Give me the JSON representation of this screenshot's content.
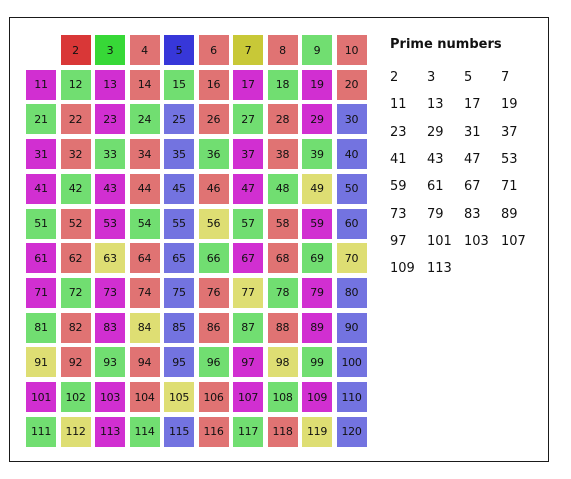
{
  "title": "Prime numbers",
  "colors": {
    "red": "#e07373",
    "green": "#71de71",
    "magenta": "#d12fd1",
    "blue": "#7373e0",
    "yellow": "#dede73",
    "first_red": "#d93737",
    "first_green": "#37d837",
    "first_blue": "#3737d9",
    "first_yellow": "#c8c837"
  },
  "cells": [
    {
      "n": "2",
      "c": "first_red"
    },
    {
      "n": "3",
      "c": "first_green"
    },
    {
      "n": "4",
      "c": "red"
    },
    {
      "n": "5",
      "c": "first_blue"
    },
    {
      "n": "6",
      "c": "red"
    },
    {
      "n": "7",
      "c": "first_yellow"
    },
    {
      "n": "8",
      "c": "red"
    },
    {
      "n": "9",
      "c": "green"
    },
    {
      "n": "10",
      "c": "red"
    },
    {
      "n": "11",
      "c": "magenta"
    },
    {
      "n": "12",
      "c": "green"
    },
    {
      "n": "13",
      "c": "magenta"
    },
    {
      "n": "14",
      "c": "red"
    },
    {
      "n": "15",
      "c": "green"
    },
    {
      "n": "16",
      "c": "red"
    },
    {
      "n": "17",
      "c": "magenta"
    },
    {
      "n": "18",
      "c": "green"
    },
    {
      "n": "19",
      "c": "magenta"
    },
    {
      "n": "20",
      "c": "red"
    },
    {
      "n": "21",
      "c": "green"
    },
    {
      "n": "22",
      "c": "red"
    },
    {
      "n": "23",
      "c": "magenta"
    },
    {
      "n": "24",
      "c": "green"
    },
    {
      "n": "25",
      "c": "blue"
    },
    {
      "n": "26",
      "c": "red"
    },
    {
      "n": "27",
      "c": "green"
    },
    {
      "n": "28",
      "c": "red"
    },
    {
      "n": "29",
      "c": "magenta"
    },
    {
      "n": "30",
      "c": "blue"
    },
    {
      "n": "31",
      "c": "magenta"
    },
    {
      "n": "32",
      "c": "red"
    },
    {
      "n": "33",
      "c": "green"
    },
    {
      "n": "34",
      "c": "red"
    },
    {
      "n": "35",
      "c": "blue"
    },
    {
      "n": "36",
      "c": "green"
    },
    {
      "n": "37",
      "c": "magenta"
    },
    {
      "n": "38",
      "c": "red"
    },
    {
      "n": "39",
      "c": "green"
    },
    {
      "n": "40",
      "c": "blue"
    },
    {
      "n": "41",
      "c": "magenta"
    },
    {
      "n": "42",
      "c": "green"
    },
    {
      "n": "43",
      "c": "magenta"
    },
    {
      "n": "44",
      "c": "red"
    },
    {
      "n": "45",
      "c": "blue"
    },
    {
      "n": "46",
      "c": "red"
    },
    {
      "n": "47",
      "c": "magenta"
    },
    {
      "n": "48",
      "c": "green"
    },
    {
      "n": "49",
      "c": "yellow"
    },
    {
      "n": "50",
      "c": "blue"
    },
    {
      "n": "51",
      "c": "green"
    },
    {
      "n": "52",
      "c": "red"
    },
    {
      "n": "53",
      "c": "magenta"
    },
    {
      "n": "54",
      "c": "green"
    },
    {
      "n": "55",
      "c": "blue"
    },
    {
      "n": "56",
      "c": "yellow"
    },
    {
      "n": "57",
      "c": "green"
    },
    {
      "n": "58",
      "c": "red"
    },
    {
      "n": "59",
      "c": "magenta"
    },
    {
      "n": "60",
      "c": "blue"
    },
    {
      "n": "61",
      "c": "magenta"
    },
    {
      "n": "62",
      "c": "red"
    },
    {
      "n": "63",
      "c": "yellow"
    },
    {
      "n": "64",
      "c": "red"
    },
    {
      "n": "65",
      "c": "blue"
    },
    {
      "n": "66",
      "c": "green"
    },
    {
      "n": "67",
      "c": "magenta"
    },
    {
      "n": "68",
      "c": "red"
    },
    {
      "n": "69",
      "c": "green"
    },
    {
      "n": "70",
      "c": "yellow"
    },
    {
      "n": "71",
      "c": "magenta"
    },
    {
      "n": "72",
      "c": "green"
    },
    {
      "n": "73",
      "c": "magenta"
    },
    {
      "n": "74",
      "c": "red"
    },
    {
      "n": "75",
      "c": "blue"
    },
    {
      "n": "76",
      "c": "red"
    },
    {
      "n": "77",
      "c": "yellow"
    },
    {
      "n": "78",
      "c": "green"
    },
    {
      "n": "79",
      "c": "magenta"
    },
    {
      "n": "80",
      "c": "blue"
    },
    {
      "n": "81",
      "c": "green"
    },
    {
      "n": "82",
      "c": "red"
    },
    {
      "n": "83",
      "c": "magenta"
    },
    {
      "n": "84",
      "c": "yellow"
    },
    {
      "n": "85",
      "c": "blue"
    },
    {
      "n": "86",
      "c": "red"
    },
    {
      "n": "87",
      "c": "green"
    },
    {
      "n": "88",
      "c": "red"
    },
    {
      "n": "89",
      "c": "magenta"
    },
    {
      "n": "90",
      "c": "blue"
    },
    {
      "n": "91",
      "c": "yellow"
    },
    {
      "n": "92",
      "c": "red"
    },
    {
      "n": "93",
      "c": "green"
    },
    {
      "n": "94",
      "c": "red"
    },
    {
      "n": "95",
      "c": "blue"
    },
    {
      "n": "96",
      "c": "green"
    },
    {
      "n": "97",
      "c": "magenta"
    },
    {
      "n": "98",
      "c": "yellow"
    },
    {
      "n": "99",
      "c": "green"
    },
    {
      "n": "100",
      "c": "blue"
    },
    {
      "n": "101",
      "c": "magenta"
    },
    {
      "n": "102",
      "c": "green"
    },
    {
      "n": "103",
      "c": "magenta"
    },
    {
      "n": "104",
      "c": "red"
    },
    {
      "n": "105",
      "c": "yellow"
    },
    {
      "n": "106",
      "c": "red"
    },
    {
      "n": "107",
      "c": "magenta"
    },
    {
      "n": "108",
      "c": "green"
    },
    {
      "n": "109",
      "c": "magenta"
    },
    {
      "n": "110",
      "c": "blue"
    },
    {
      "n": "111",
      "c": "green"
    },
    {
      "n": "112",
      "c": "yellow"
    },
    {
      "n": "113",
      "c": "magenta"
    },
    {
      "n": "114",
      "c": "green"
    },
    {
      "n": "115",
      "c": "blue"
    },
    {
      "n": "116",
      "c": "red"
    },
    {
      "n": "117",
      "c": "green"
    },
    {
      "n": "118",
      "c": "red"
    },
    {
      "n": "119",
      "c": "yellow"
    },
    {
      "n": "120",
      "c": "blue"
    }
  ],
  "primes": [
    [
      "2",
      "3",
      "5",
      "7"
    ],
    [
      "11",
      "13",
      "17",
      "19"
    ],
    [
      "23",
      "29",
      "31",
      "37"
    ],
    [
      "41",
      "43",
      "47",
      "53"
    ],
    [
      "59",
      "61",
      "67",
      "71"
    ],
    [
      "73",
      "79",
      "83",
      "89"
    ],
    [
      "97",
      "101",
      "103",
      "107"
    ],
    [
      "109",
      "113"
    ]
  ]
}
